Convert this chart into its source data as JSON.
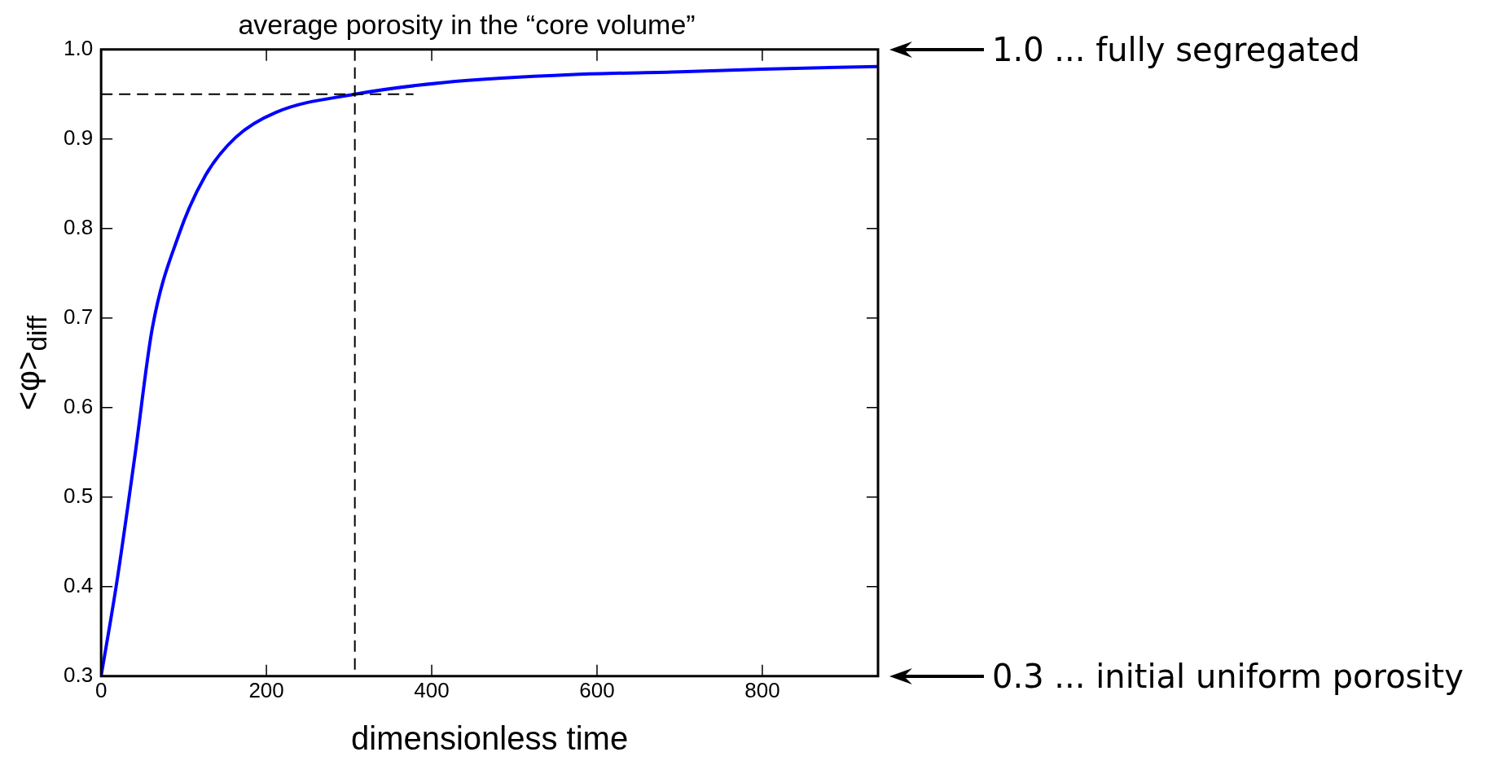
{
  "chart_data": {
    "type": "line",
    "title": "average porosity in the “core volume”",
    "xlabel": "dimensionless time",
    "ylabel": "<φ>$_{diff}$",
    "xlim": [
      0,
      940
    ],
    "xticks": [
      0,
      200,
      400,
      600,
      800
    ],
    "ylim": [
      0.3,
      1.0
    ],
    "yticks": [
      0.3,
      0.4,
      0.5,
      0.6,
      0.7,
      0.8,
      0.9,
      {
        "value": 1.0,
        "label": "1.0"
      }
    ],
    "grid": false,
    "legend": false,
    "marker": "none",
    "line_style": "solid",
    "series": [
      {
        "color": "#0000ff",
        "x": [
          0,
          19,
          41,
          62,
          94,
          126,
          163,
          212,
          307,
          414,
          573,
          700,
          800,
          940
        ],
        "values": [
          0.3,
          0.405,
          0.547,
          0.689,
          0.793,
          0.859,
          0.902,
          0.93,
          0.95,
          0.963,
          0.972,
          0.975,
          0.978,
          0.981
        ]
      }
    ],
    "ref_lines": [
      {
        "axis": "y",
        "value": 0.95,
        "line_style": "dashed",
        "color": "#000000"
      },
      {
        "axis": "x",
        "value": 307,
        "line_style": "dashed",
        "color": "#000000"
      }
    ],
    "annotations": [
      "1.0 ... fully segregated",
      "0.3 ... initial uniform porosity"
    ]
  }
}
